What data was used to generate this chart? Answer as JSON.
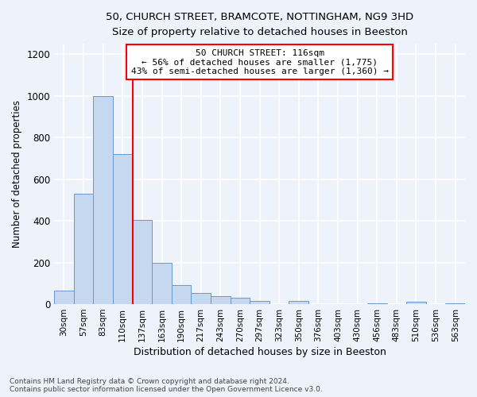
{
  "title1": "50, CHURCH STREET, BRAMCOTE, NOTTINGHAM, NG9 3HD",
  "title2": "Size of property relative to detached houses in Beeston",
  "xlabel": "Distribution of detached houses by size in Beeston",
  "ylabel": "Number of detached properties",
  "footer1": "Contains HM Land Registry data © Crown copyright and database right 2024.",
  "footer2": "Contains public sector information licensed under the Open Government Licence v3.0.",
  "bin_labels": [
    "30sqm",
    "57sqm",
    "83sqm",
    "110sqm",
    "137sqm",
    "163sqm",
    "190sqm",
    "217sqm",
    "243sqm",
    "270sqm",
    "297sqm",
    "323sqm",
    "350sqm",
    "376sqm",
    "403sqm",
    "430sqm",
    "456sqm",
    "483sqm",
    "510sqm",
    "536sqm",
    "563sqm"
  ],
  "bar_values": [
    65,
    530,
    1000,
    720,
    405,
    200,
    90,
    55,
    40,
    30,
    15,
    0,
    15,
    0,
    0,
    0,
    5,
    0,
    10,
    0,
    5
  ],
  "bar_color": "#c5d8f0",
  "bar_edge_color": "#6699cc",
  "property_line_x": 3.5,
  "property_line_label": "50 CHURCH STREET: 116sqm",
  "annotation_line1": "← 56% of detached houses are smaller (1,775)",
  "annotation_line2": "43% of semi-detached houses are larger (1,360) →",
  "annotation_box_color": "white",
  "annotation_box_edge_color": "red",
  "line_color": "red",
  "ylim": [
    0,
    1250
  ],
  "yticks": [
    0,
    200,
    400,
    600,
    800,
    1000,
    1200
  ],
  "background_color": "#eef2fb",
  "grid_color": "#ffffff",
  "num_bins": 21,
  "fig_width": 6.0,
  "fig_height": 5.0
}
